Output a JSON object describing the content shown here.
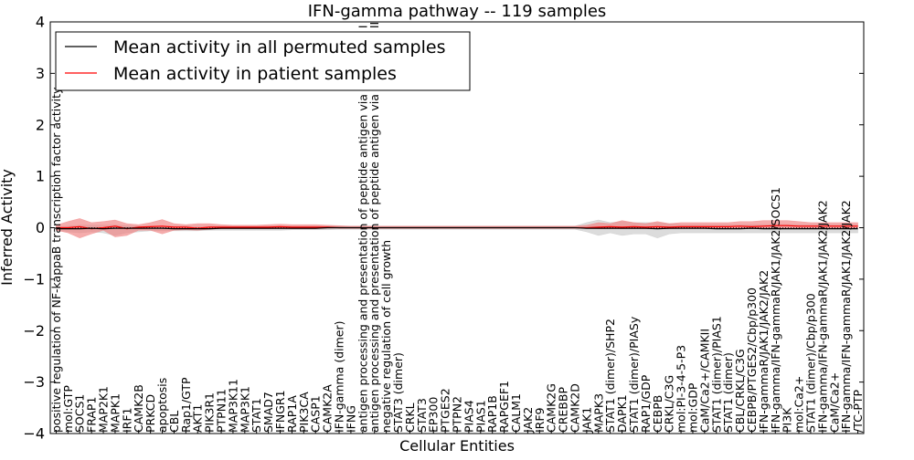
{
  "chart_data": {
    "type": "line",
    "title": "IFN-gamma pathway -- 119 samples",
    "xlabel": "Cellular Entities",
    "ylabel": "Inferred Activity",
    "ylim": [
      -4,
      4
    ],
    "yticks": [
      -4,
      -3,
      -2,
      -1,
      0,
      1,
      2,
      3,
      4
    ],
    "grid": false,
    "legend_position": "top-left",
    "colors": {
      "permuted": "#000000",
      "patient": "#ff0000",
      "patient_band": "#f08080",
      "permuted_band": "#c0c0c0"
    },
    "categories": [
      "positive regulation of NF-kappaB transcription factor activity",
      "mol:GTP",
      "SOCS1",
      "FRAP1",
      "MAP2K1",
      "MAPK1",
      "IRF1",
      "CAMK2B",
      "PRKCD",
      "apoptosis",
      "CBL",
      "Rap1/GTP",
      "AKT1",
      "PIK3R1",
      "PTPN11",
      "MAP3K11",
      "MAP3K1",
      "STAT1",
      "SMAD7",
      "IFNGR1",
      "RAP1A",
      "PIK3CA",
      "CASP1",
      "CAMK2A",
      "IFN-gamma (dimer)",
      "IFNG",
      "antigen processing and presentation of peptide antigen via MHC class I",
      "antigen processing and presentation of peptide antigen via MHC class II",
      "negative regulation of cell growth",
      "STAT3 (dimer)",
      "CRKL",
      "STAT3",
      "EP300",
      "PTGES2",
      "PTPN2",
      "PIAS4",
      "PIAS1",
      "RAP1B",
      "RAPGEF1",
      "CALM1",
      "JAK2",
      "IRF9",
      "CAMK2G",
      "CREBBP",
      "CAMK2D",
      "JAK1",
      "MAPK3",
      "STAT1 (dimer)/SHP2",
      "DAPK1",
      "STAT1 (dimer)/PIASy",
      "RAP1/GDP",
      "CEBPB",
      "CRKL/C3G",
      "mol:PI-3-4-5-P3",
      "mol:GDP",
      "CaM/Ca2+/CAMKII",
      "STAT1 (dimer)/PIAS1",
      "STAT1 (dimer)",
      "CBL/CRKL/C3G",
      "CEBPB/PTGES2/Cbp/p300",
      "IFN-gammaR/JAK1/JAK2/JAK2",
      "IFN-gamma/IFN-gammaR/JAK1/JAK2/SOCS1",
      "PI3K",
      "mol:Ca2+",
      "STAT1 (dimer)/Cbp/p300",
      "IFN-gamma/IFN-gammaR/JAK1/JAK2/JAK2",
      "CaM/Ca2+",
      "IFN-gamma/IFN-gammaR/JAK1/JAK2/JAK2",
      "/TC-PTP"
    ],
    "series": [
      {
        "name": "Mean activity in all permuted samples",
        "values": [
          -0.02,
          -0.02,
          -0.02,
          -0.01,
          -0.02,
          -0.01,
          -0.01,
          -0.01,
          -0.01,
          -0.01,
          -0.02,
          -0.02,
          -0.02,
          -0.02,
          -0.01,
          -0.01,
          -0.01,
          -0.01,
          -0.01,
          -0.01,
          -0.01,
          -0.01,
          -0.01,
          0,
          0,
          0,
          0,
          0,
          0,
          0,
          0,
          0,
          0,
          0,
          0,
          0,
          0,
          0,
          0,
          0,
          0,
          0,
          0,
          0,
          0,
          -0.01,
          -0.01,
          -0.01,
          -0.01,
          -0.01,
          -0.01,
          -0.02,
          -0.01,
          -0.01,
          -0.01,
          -0.01,
          -0.02,
          -0.02,
          -0.02,
          -0.01,
          -0.02,
          -0.02,
          -0.02,
          -0.02,
          -0.02,
          -0.02,
          -0.02,
          -0.02,
          -0.02
        ],
        "lower": [
          -0.05,
          -0.08,
          -0.1,
          -0.08,
          -0.1,
          -0.15,
          -0.1,
          -0.08,
          -0.06,
          -0.06,
          -0.06,
          -0.06,
          -0.06,
          -0.05,
          -0.05,
          -0.05,
          -0.05,
          -0.05,
          -0.05,
          -0.05,
          -0.04,
          -0.04,
          -0.04,
          -0.04,
          -0.03,
          -0.03,
          -0.03,
          -0.03,
          -0.03,
          -0.03,
          -0.03,
          -0.03,
          -0.03,
          -0.03,
          -0.03,
          -0.03,
          -0.03,
          -0.03,
          -0.03,
          -0.03,
          -0.03,
          -0.03,
          -0.03,
          -0.03,
          -0.03,
          -0.08,
          -0.15,
          -0.1,
          -0.15,
          -0.12,
          -0.12,
          -0.2,
          -0.12,
          -0.1,
          -0.1,
          -0.1,
          -0.1,
          -0.1,
          -0.1,
          -0.1,
          -0.1,
          -0.1,
          -0.1,
          -0.1,
          -0.1,
          -0.1,
          -0.1,
          -0.1,
          -0.1
        ],
        "upper": [
          0.02,
          0.03,
          0.05,
          0.05,
          0.05,
          0.05,
          0.04,
          0.03,
          0.03,
          0.03,
          0.03,
          0.03,
          0.03,
          0.03,
          0.03,
          0.03,
          0.03,
          0.03,
          0.03,
          0.03,
          0.03,
          0.03,
          0.03,
          0.03,
          0.03,
          0.03,
          0.03,
          0.03,
          0.03,
          0.03,
          0.03,
          0.03,
          0.03,
          0.03,
          0.03,
          0.03,
          0.03,
          0.03,
          0.03,
          0.03,
          0.03,
          0.03,
          0.03,
          0.03,
          0.03,
          0.1,
          0.15,
          0.1,
          0.12,
          0.1,
          0.1,
          0.1,
          0.08,
          0.06,
          0.06,
          0.06,
          0.06,
          0.06,
          0.06,
          0.06,
          0.06,
          0.06,
          0.06,
          0.06,
          0.06,
          0.06,
          0.06,
          0.06,
          0.06
        ]
      },
      {
        "name": "Mean activity in patient samples",
        "values": [
          0,
          0,
          0.02,
          -0.02,
          0,
          0.03,
          -0.02,
          0.01,
          0.02,
          0.03,
          0.01,
          0.01,
          -0.01,
          0.01,
          0.01,
          0.01,
          0.01,
          0.01,
          0.01,
          0.02,
          0.01,
          0.01,
          0.01,
          0.01,
          0,
          0,
          0,
          0,
          0,
          0,
          0,
          0,
          0,
          0,
          0,
          0,
          0,
          0,
          0,
          0,
          0,
          0,
          0,
          0,
          0,
          0,
          0.01,
          0.02,
          0.01,
          0.02,
          0.01,
          0.02,
          0.01,
          0.02,
          0.02,
          0.02,
          0.02,
          0.02,
          0.03,
          0.02,
          0.03,
          0.04,
          0.04,
          0.03,
          0.03,
          0.03,
          0.03,
          0.03,
          0.03
        ],
        "lower": [
          -0.05,
          -0.1,
          -0.2,
          -0.12,
          -0.05,
          -0.18,
          -0.15,
          -0.05,
          -0.05,
          -0.12,
          -0.05,
          -0.04,
          -0.05,
          -0.03,
          -0.02,
          -0.02,
          -0.02,
          -0.02,
          -0.02,
          -0.02,
          -0.02,
          -0.02,
          -0.02,
          -0.01,
          -0.01,
          -0.01,
          -0.01,
          -0.01,
          -0.01,
          -0.01,
          -0.01,
          -0.01,
          -0.01,
          -0.01,
          -0.01,
          -0.01,
          -0.01,
          -0.01,
          -0.01,
          -0.01,
          -0.01,
          -0.01,
          -0.01,
          -0.01,
          -0.01,
          -0.01,
          -0.02,
          -0.02,
          -0.02,
          -0.02,
          -0.02,
          -0.02,
          -0.02,
          -0.02,
          -0.02,
          -0.02,
          -0.02,
          -0.02,
          -0.02,
          -0.02,
          -0.02,
          -0.01,
          -0.01,
          -0.01,
          -0.01,
          -0.01,
          -0.01,
          -0.01,
          -0.01
        ],
        "upper": [
          0.05,
          0.12,
          0.18,
          0.1,
          0.12,
          0.15,
          0.08,
          0.06,
          0.1,
          0.16,
          0.08,
          0.06,
          0.08,
          0.08,
          0.06,
          0.05,
          0.05,
          0.05,
          0.06,
          0.07,
          0.06,
          0.06,
          0.06,
          0.05,
          0.04,
          0.03,
          0.03,
          0.03,
          0.03,
          0.03,
          0.03,
          0.03,
          0.03,
          0.03,
          0.03,
          0.03,
          0.03,
          0.03,
          0.03,
          0.03,
          0.03,
          0.03,
          0.03,
          0.03,
          0.03,
          0.05,
          0.1,
          0.08,
          0.14,
          0.1,
          0.08,
          0.12,
          0.08,
          0.1,
          0.1,
          0.1,
          0.1,
          0.1,
          0.12,
          0.12,
          0.14,
          0.14,
          0.14,
          0.12,
          0.1,
          0.1,
          0.1,
          0.1,
          0.1
        ]
      }
    ]
  }
}
